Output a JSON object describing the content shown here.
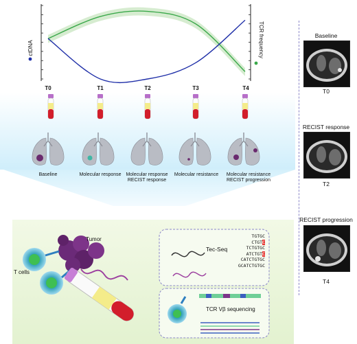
{
  "chart": {
    "y_left_label": "ctDNA",
    "y_right_label": "TCR frequency",
    "colors": {
      "ctdna": "#1f2fa8",
      "tcr": "#3aa84a",
      "tcr_band": "#cfe9c8"
    }
  },
  "timepoints": [
    "T0",
    "T1",
    "T2",
    "T3",
    "T4"
  ],
  "stages": [
    {
      "line1": "Baseline",
      "line2": ""
    },
    {
      "line1": "Molecular response",
      "line2": ""
    },
    {
      "line1": "Molecular response",
      "line2": "RECIST response"
    },
    {
      "line1": "Molecular resistance",
      "line2": ""
    },
    {
      "line1": "Molecular resistance",
      "line2": "RECIST progression"
    }
  ],
  "bottom": {
    "tumor_label": "Tumor",
    "tcells_label": "T cells",
    "tecseq_label": "Tec-Seq",
    "tcr_seq_label": "TCR Vβ sequencing",
    "sequences": [
      {
        "text": "TGTGC",
        "mut": ""
      },
      {
        "text": "CTGT",
        "mut": "C"
      },
      {
        "text": "TCTGTGC",
        "mut": ""
      },
      {
        "text": "ATCTGT",
        "mut": "C"
      },
      {
        "text": "CATCTGTGC",
        "mut": ""
      },
      {
        "text": "GCATCTGTGC",
        "mut": ""
      }
    ]
  },
  "side_panels": [
    {
      "title": "Baseline",
      "timepoint": "T0"
    },
    {
      "title": "RECIST response",
      "timepoint": "T2"
    },
    {
      "title": "RECIST progression",
      "timepoint": "T4"
    }
  ],
  "chart_data": {
    "type": "line",
    "x": [
      "T0",
      "T1",
      "T2",
      "T3",
      "T4"
    ],
    "series": [
      {
        "name": "ctDNA",
        "values": [
          0.55,
          0.0,
          0.0,
          0.22,
          0.8
        ]
      },
      {
        "name": "TCR frequency",
        "values": [
          0.55,
          0.85,
          0.92,
          0.75,
          0.1
        ]
      }
    ],
    "ylim": [
      0,
      1
    ]
  }
}
